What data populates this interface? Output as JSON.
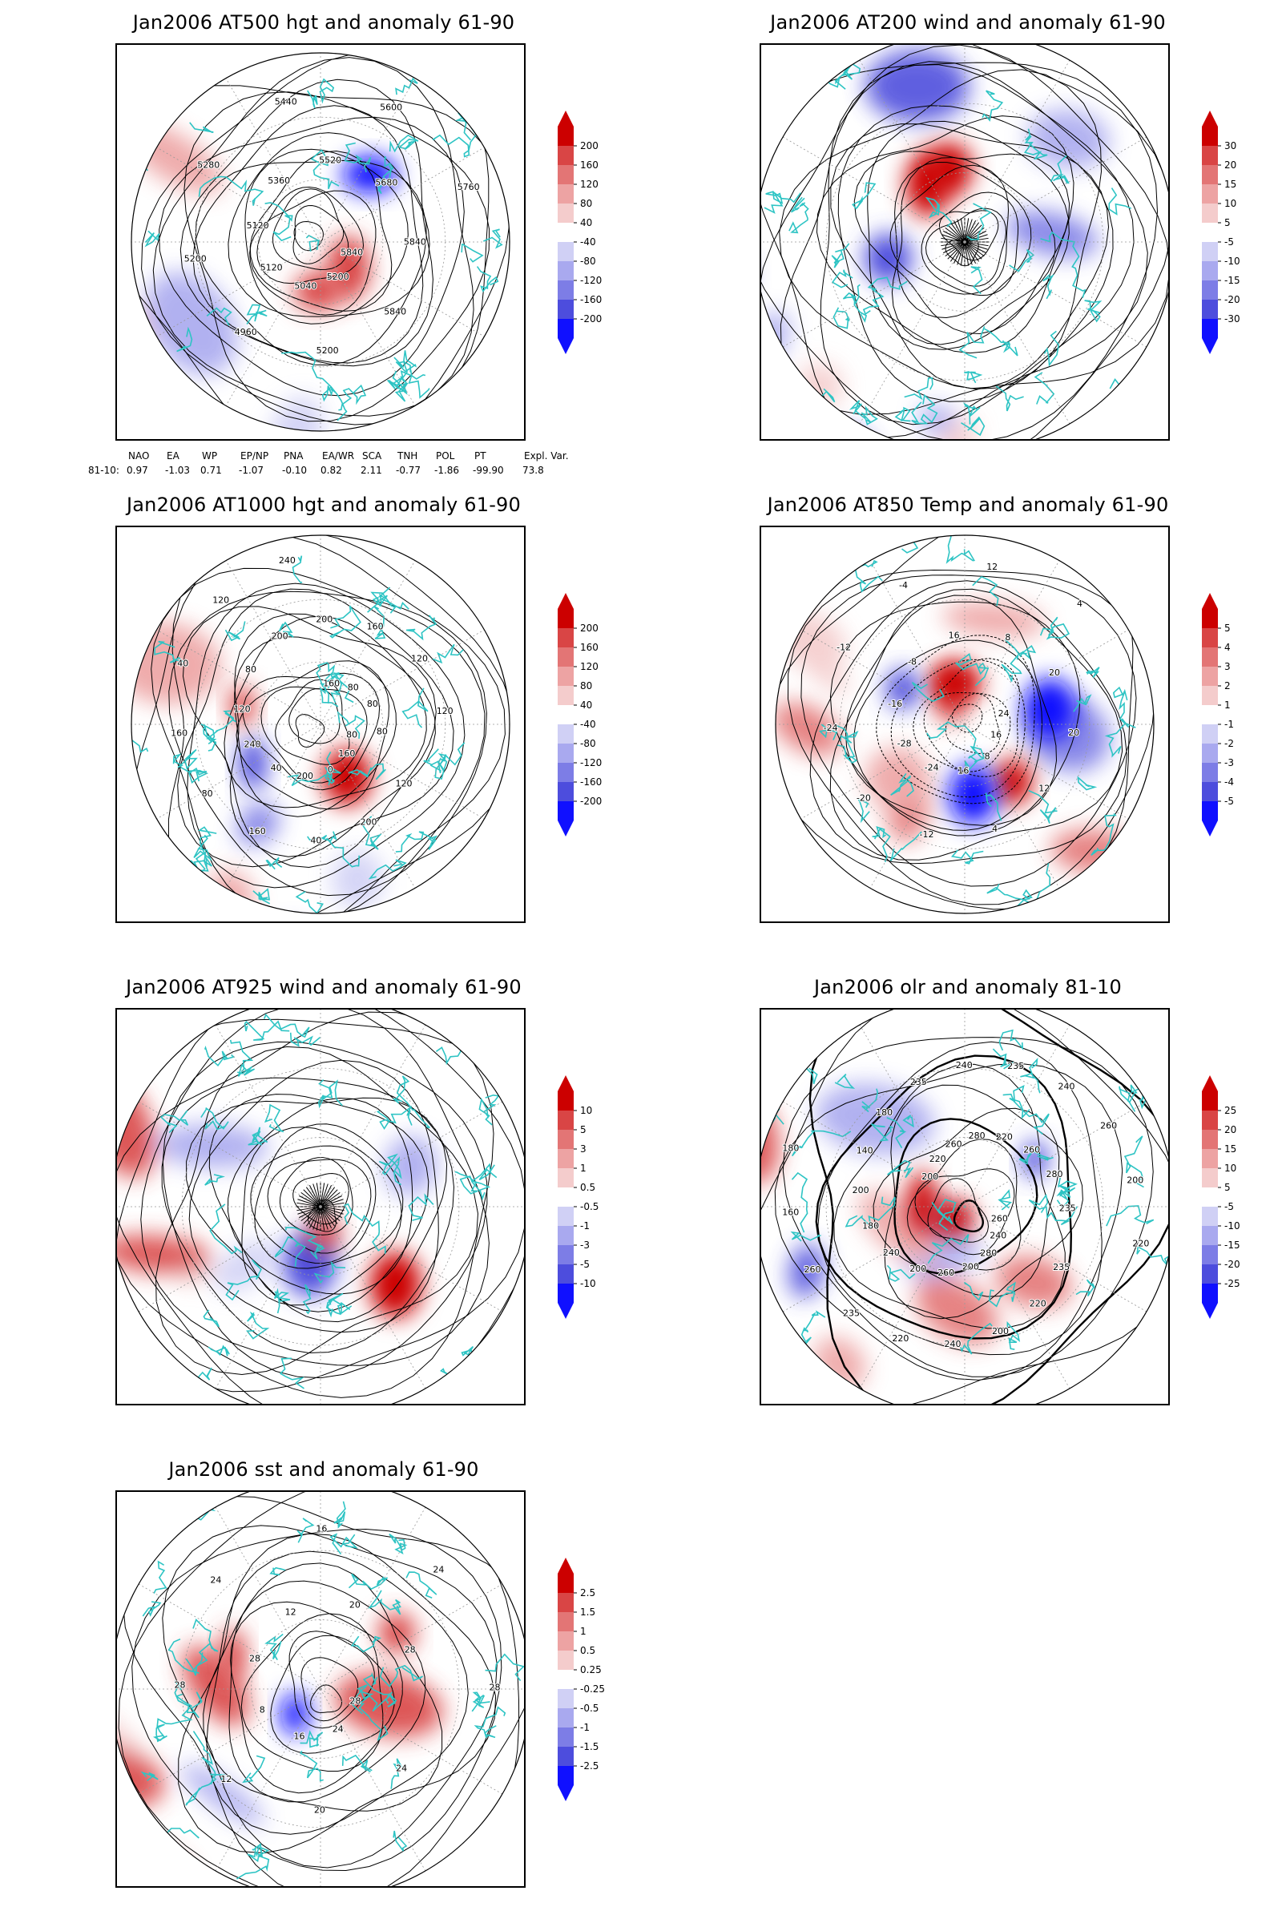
{
  "panels": [
    {
      "id": "p1",
      "title": "Jan2006 AT500 hgt and anomaly 61-90",
      "colorbar": [
        "200",
        "160",
        "120",
        "80",
        "40",
        "-40",
        "-80",
        "-120",
        "-160",
        "-200"
      ],
      "contour_labels": [
        "5840",
        "5840",
        "5200",
        "5200",
        "5040",
        "4960",
        "5120",
        "5200",
        "5120",
        "5280",
        "5360",
        "5440",
        "5520",
        "5600",
        "5680",
        "5760",
        "5840"
      ],
      "indices": {
        "headers": [
          "NAO",
          "EA",
          "WP",
          "EP/NP",
          "PNA",
          "EA/WR",
          "SCA",
          "TNH",
          "POL",
          "PT",
          "Expl. Var."
        ],
        "row_label": "81-10:",
        "values": [
          "0.97",
          "-1.03",
          "0.71",
          "-1.07",
          "-0.10",
          "0.82",
          "2.11",
          "-0.77",
          "-1.86",
          "-99.90",
          "73.8"
        ]
      }
    },
    {
      "id": "p2",
      "title": "Jan2006 AT200 wind and anomaly 61-90",
      "colorbar": [
        "30",
        "20",
        "15",
        "10",
        "5",
        "-5",
        "-10",
        "-15",
        "-20",
        "-30"
      ],
      "contour_labels": []
    },
    {
      "id": "p3",
      "title": "Jan2006 AT1000 hgt and anomaly 61-90",
      "colorbar": [
        "200",
        "160",
        "120",
        "80",
        "40",
        "-40",
        "-80",
        "-120",
        "-160",
        "-200"
      ],
      "contour_labels": [
        "80",
        "120",
        "160",
        "200",
        "0",
        "40",
        "200",
        "160",
        "40",
        "80",
        "240",
        "160",
        "120",
        "40",
        "80",
        "120",
        "200",
        "240",
        "200",
        "160",
        "160",
        "80",
        "120",
        "80",
        "120",
        "80"
      ]
    },
    {
      "id": "p4",
      "title": "Jan2006 AT850 Temp and anomaly 61-90",
      "colorbar": [
        "5",
        "4",
        "3",
        "2",
        "1",
        "-1",
        "-2",
        "-3",
        "-4",
        "-5"
      ],
      "contour_labels": [
        "16",
        "12",
        "8",
        "4",
        "16",
        "-12",
        "-24",
        "-20",
        "-28",
        "-24",
        "-16",
        "-12",
        "-8",
        "-4",
        "16",
        "12",
        "8",
        "4",
        "20",
        "24",
        "20"
      ]
    },
    {
      "id": "p5",
      "title": "Jan2006 AT925 wind and anomaly 61-90",
      "colorbar": [
        "10",
        "5",
        "3",
        "1",
        "0.5",
        "-0.5",
        "-1",
        "-3",
        "-5",
        "-10"
      ],
      "contour_labels": []
    },
    {
      "id": "p6",
      "title": "Jan2006 olr and anomaly 81-10",
      "colorbar": [
        "25",
        "20",
        "15",
        "10",
        "5",
        "-5",
        "-10",
        "-15",
        "-20",
        "-25"
      ],
      "contour_labels": [
        "260",
        "235",
        "240",
        "220",
        "280",
        "200",
        "200",
        "240",
        "260",
        "220",
        "200",
        "235",
        "240",
        "260",
        "180",
        "160",
        "200",
        "180",
        "140",
        "200",
        "180",
        "220",
        "235",
        "260",
        "240",
        "280",
        "235",
        "220",
        "240",
        "260",
        "260",
        "280",
        "200",
        "235",
        "220"
      ]
    },
    {
      "id": "p7",
      "title": "Jan2006 sst and anomaly 61-90",
      "colorbar": [
        "2.5",
        "1.5",
        "1",
        "0.5",
        "0.25",
        "-0.25",
        "-0.5",
        "-1",
        "-1.5",
        "-2.5"
      ],
      "contour_labels": [
        "28",
        "24",
        "24",
        "20",
        "16",
        "12",
        "8",
        "28",
        "28",
        "24",
        "12",
        "16",
        "20",
        "24",
        "28",
        "28"
      ]
    }
  ],
  "colors": {
    "positive": [
      "#f4cccc",
      "#eda3a3",
      "#e37575",
      "#d94545",
      "#cc0000"
    ],
    "negative": [
      "#d0d0f5",
      "#a9a9ef",
      "#7d7de6",
      "#4d4ddd",
      "#1010ff"
    ],
    "coast": "#2ec4c4",
    "contour": "#000000"
  }
}
